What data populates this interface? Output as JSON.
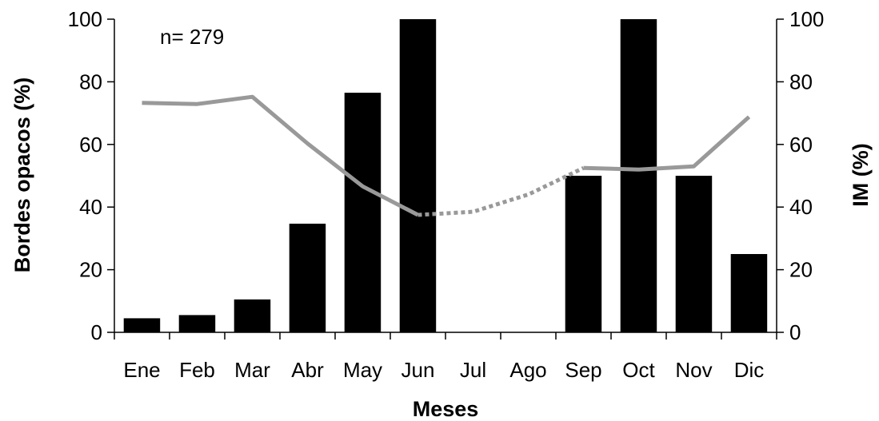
{
  "chart_data": {
    "type": "bar",
    "categories": [
      "Ene",
      "Feb",
      "Mar",
      "Abr",
      "May",
      "Jun",
      "Jul",
      "Ago",
      "Sep",
      "Oct",
      "Nov",
      "Dic"
    ],
    "xlabel": "Meses",
    "ylabel": "Bordes opacos (%)",
    "y2label": "IM (%)",
    "annotation": "n= 279",
    "ylim": [
      0,
      100
    ],
    "y2lim": [
      0,
      100
    ],
    "yticks": [
      0,
      20,
      40,
      60,
      80,
      100
    ],
    "y2ticks": [
      0,
      20,
      40,
      60,
      80,
      100
    ],
    "grid": false,
    "bars": {
      "color": "#000000",
      "values": [
        4.5,
        5.5,
        10.5,
        34.7,
        76.5,
        100,
        null,
        null,
        50,
        100,
        50,
        25
      ]
    },
    "line": {
      "color": "#999999",
      "values": [
        73.3,
        72.9,
        75.2,
        60.3,
        46.6,
        37.5,
        38.5,
        44,
        52.5,
        52,
        53,
        68.8
      ],
      "solid_segments": [
        [
          0,
          5
        ],
        [
          8,
          11
        ]
      ],
      "dotted_segments": [
        [
          5,
          8
        ]
      ]
    }
  }
}
